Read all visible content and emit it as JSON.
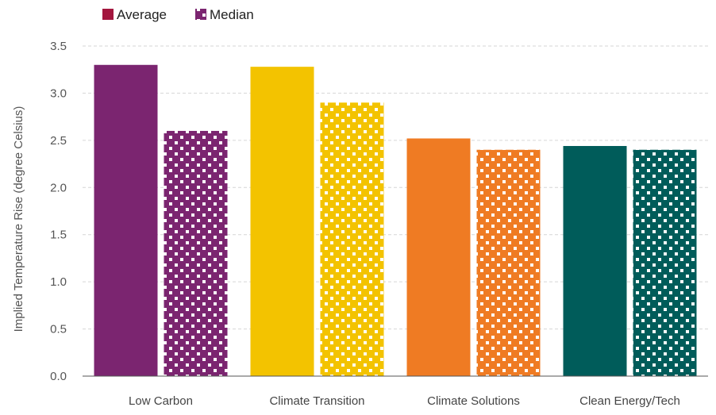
{
  "chart_data": {
    "type": "bar",
    "title": "",
    "xlabel": "",
    "ylabel": "Implied Temperature Rise (degree Celsius)",
    "ylim": [
      0,
      3.5
    ],
    "yticks": [
      0.0,
      0.5,
      1.0,
      1.5,
      2.0,
      2.5,
      3.0,
      3.5
    ],
    "ytick_labels": [
      "0.0",
      "0.5",
      "1.0",
      "1.5",
      "2.0",
      "2.5",
      "3.0",
      "3.5"
    ],
    "categories": [
      "Low Carbon",
      "Climate Transition",
      "Climate Solutions",
      "Clean Energy/Tech"
    ],
    "category_colors": [
      "#7b2570",
      "#f3c300",
      "#ef7b23",
      "#005c5a"
    ],
    "series": [
      {
        "name": "Average",
        "pattern": "solid",
        "values": [
          3.3,
          3.28,
          2.52,
          2.44
        ]
      },
      {
        "name": "Median",
        "pattern": "dotted",
        "values": [
          2.6,
          2.9,
          2.4,
          2.4
        ]
      }
    ],
    "legend": {
      "position": "top-left",
      "items": [
        {
          "label": "Average",
          "color": "#a3163e",
          "pattern": "solid"
        },
        {
          "label": "Median",
          "color": "#7b2570",
          "pattern": "dotted"
        }
      ]
    },
    "grid": true
  }
}
